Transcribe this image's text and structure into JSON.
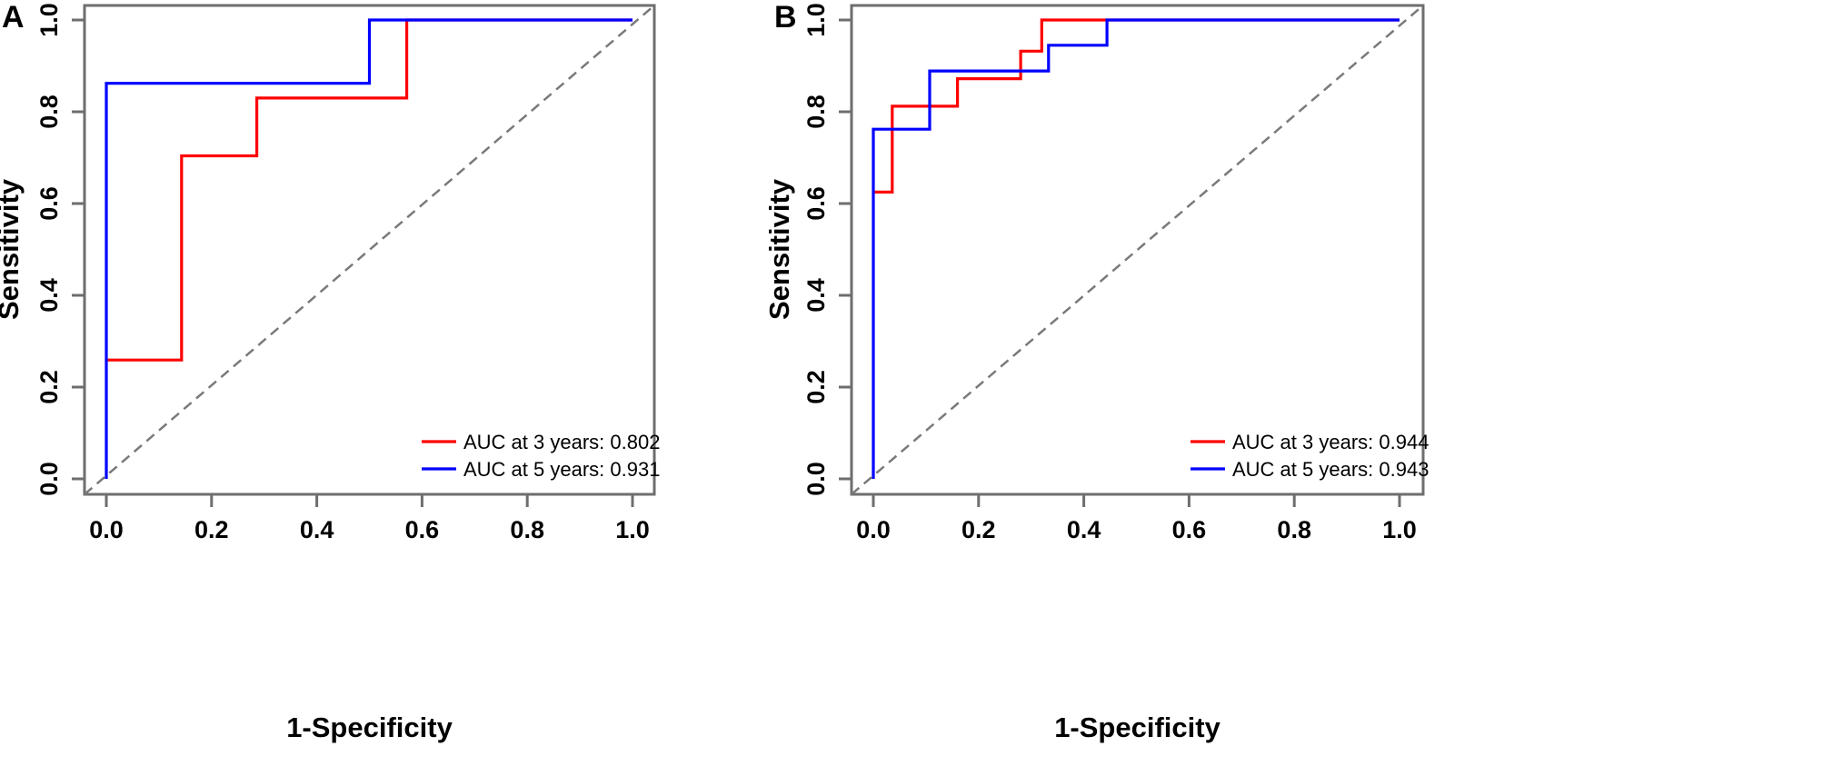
{
  "chart_data": [
    {
      "type": "line",
      "panel_label": "A",
      "title": "",
      "xlabel": "1-Specificity",
      "ylabel": "Sensitivity",
      "xlim": [
        0,
        1
      ],
      "ylim": [
        0,
        1
      ],
      "xticks": [
        "0.0",
        "0.2",
        "0.4",
        "0.6",
        "0.8",
        "1.0"
      ],
      "yticks": [
        "0.0",
        "0.2",
        "0.4",
        "0.6",
        "0.8",
        "1.0"
      ],
      "grid": false,
      "legend_position": "bottom-right",
      "reference_line": "diagonal dashed",
      "series": [
        {
          "name": "AUC at 3 years: 0.802",
          "color": "#ff0000",
          "x": [
            0,
            0.143,
            0.143,
            0.286,
            0.286,
            0.571,
            0.571,
            1.0
          ],
          "y": [
            0.259,
            0.259,
            0.704,
            0.704,
            0.83,
            0.83,
            1.0,
            1.0
          ]
        },
        {
          "name": "AUC at 5 years: 0.931",
          "color": "#0000ff",
          "x": [
            0,
            0,
            0.5,
            0.5,
            1.0
          ],
          "y": [
            0,
            0.862,
            0.862,
            1.0,
            1.0
          ]
        }
      ]
    },
    {
      "type": "line",
      "panel_label": "B",
      "title": "",
      "xlabel": "1-Specificity",
      "ylabel": "Sensitivity",
      "xlim": [
        0,
        1
      ],
      "ylim": [
        0,
        1
      ],
      "xticks": [
        "0.0",
        "0.2",
        "0.4",
        "0.6",
        "0.8",
        "1.0"
      ],
      "yticks": [
        "0.0",
        "0.2",
        "0.4",
        "0.6",
        "0.8",
        "1.0"
      ],
      "grid": false,
      "legend_position": "bottom-right",
      "reference_line": "diagonal dashed",
      "series": [
        {
          "name": "AUC at 3 years: 0.944",
          "color": "#ff0000",
          "x": [
            0,
            0.036,
            0.036,
            0.16,
            0.16,
            0.28,
            0.28,
            0.32,
            0.32,
            1.0
          ],
          "y": [
            0.625,
            0.625,
            0.812,
            0.812,
            0.872,
            0.872,
            0.932,
            0.932,
            1.0,
            1.0
          ]
        },
        {
          "name": "AUC at 5 years: 0.943",
          "color": "#0000ff",
          "x": [
            0,
            0,
            0.107,
            0.107,
            0.333,
            0.333,
            0.444,
            0.444,
            1.0
          ],
          "y": [
            0,
            0.762,
            0.762,
            0.889,
            0.889,
            0.945,
            0.945,
            1.0,
            1.0
          ]
        }
      ]
    }
  ]
}
